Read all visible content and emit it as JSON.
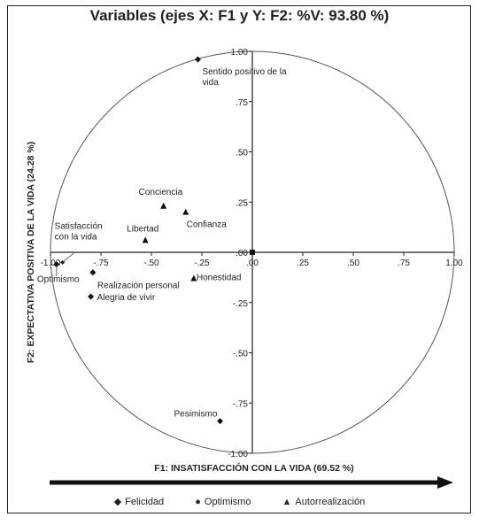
{
  "chart_data": {
    "type": "scatter",
    "title": "Variables (ejes X: F1 y Y: F2: %V: 93.80 %)",
    "xlabel": "F1: INSATISFACCIÓN CON LA VIDA (69.52 %)",
    "ylabel": "F2: EXPECTATIVA POSITIVA DE LA VIDA (24.28 %)",
    "xlim": [
      -1,
      1
    ],
    "ylim": [
      -1,
      1
    ],
    "x_ticks": [
      "-1.00",
      "-.75",
      "-.50",
      "-.25",
      ".00",
      ".25",
      ".50",
      ".75",
      "1.00"
    ],
    "y_ticks": [
      "1.00",
      ".75",
      ".50",
      ".25",
      ".00",
      "-.25",
      "-.50",
      "-.75",
      "-1.00"
    ],
    "grid": false,
    "legend_position": "bottom",
    "correlation_circle": true,
    "series": [
      {
        "name": "Felicidad",
        "marker": "diamond-small",
        "points": [
          {
            "label": "Satisfacción con la vida",
            "x": -0.94,
            "y": -0.05
          }
        ]
      },
      {
        "name": "Optimismo",
        "marker": "diamond",
        "points": [
          {
            "label": "Sentido positivo de la vida",
            "x": -0.27,
            "y": 0.96
          },
          {
            "label": "Optimismo",
            "x": -0.97,
            "y": -0.06
          },
          {
            "label": "Realización personal",
            "x": -0.79,
            "y": -0.1
          },
          {
            "label": "Alegria de vivir",
            "x": -0.8,
            "y": -0.22
          },
          {
            "label": "Pesimismo",
            "x": -0.16,
            "y": -0.84
          }
        ]
      },
      {
        "name": "Autorrealización",
        "marker": "triangle",
        "points": [
          {
            "label": "Conciencia",
            "x": -0.44,
            "y": 0.23
          },
          {
            "label": "Confianza",
            "x": -0.33,
            "y": 0.2
          },
          {
            "label": "Libertad",
            "x": -0.53,
            "y": 0.06
          },
          {
            "label": "Honestidad",
            "x": -0.29,
            "y": -0.13
          }
        ]
      }
    ]
  },
  "legend_labels": {
    "felicidad": "Felicidad",
    "optimismo": "Optimismo",
    "autorrealizacion": "Autorrealización"
  }
}
